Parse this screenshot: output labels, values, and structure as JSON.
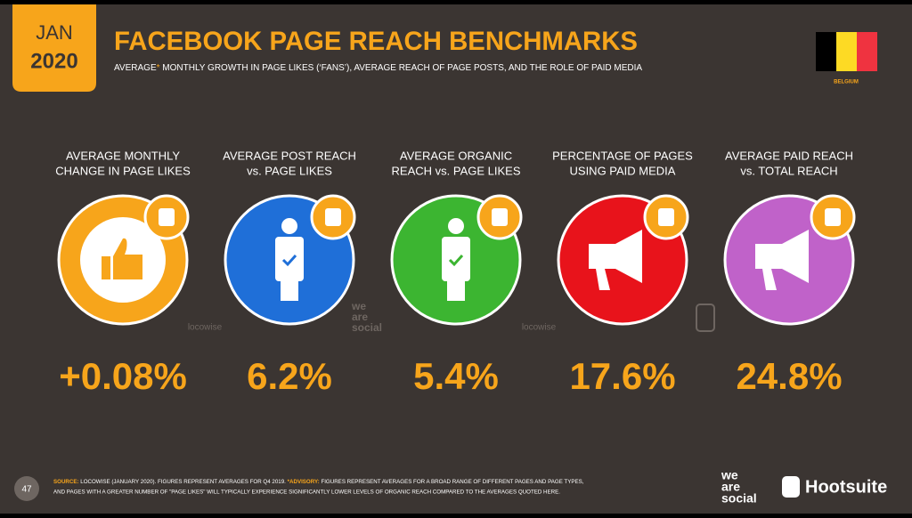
{
  "header": {
    "badge_month": "JAN",
    "badge_year": "2020",
    "title": "FACEBOOK PAGE REACH BENCHMARKS",
    "subtitle_lead": "AVERAGE",
    "subtitle_mark": "*",
    "subtitle_rest": " MONTHLY GROWTH IN PAGE LIKES (‘FANS’), AVERAGE REACH OF PAGE POSTS, AND THE ROLE OF PAID MEDIA",
    "country": "BELGIUM"
  },
  "stats": [
    {
      "label": [
        "AVERAGE MONTHLY",
        "CHANGE IN PAGE LIKES"
      ],
      "value": "+0.08%"
    },
    {
      "label": [
        "AVERAGE POST REACH",
        "vs. PAGE LIKES"
      ],
      "value": "6.2%"
    },
    {
      "label": [
        "AVERAGE ORGANIC",
        "REACH vs. PAGE LIKES"
      ],
      "value": "5.4%"
    },
    {
      "label": [
        "PERCENTAGE OF PAGES",
        "USING PAID MEDIA"
      ],
      "value": "17.6%"
    },
    {
      "label": [
        "AVERAGE PAID REACH",
        "vs. TOTAL REACH"
      ],
      "value": "24.8%"
    }
  ],
  "watermarks": {
    "locowise": "locowise",
    "social": [
      "we",
      "are",
      "social"
    ]
  },
  "footer": {
    "page": "47",
    "source_label": "SOURCE:",
    "source_text": " LOCOWISE (JANUARY 2020). FIGURES REPRESENT AVERAGES FOR Q4 2019. ",
    "advisory_label": "*ADVISORY:",
    "advisory_text": " FIGURES REPRESENT AVERAGES FOR A BROAD RANGE OF DIFFERENT PAGES AND PAGE TYPES,",
    "line2": "AND PAGES WITH A GREATER NUMBER OF \"PAGE LIKES\" WILL TYPICALLY EXPERIENCE SIGNIFICANTLY LOWER LEVELS OF ORGANIC REACH COMPARED TO THE AVERAGES QUOTED HERE.",
    "brand1": [
      "we",
      "are",
      "social"
    ],
    "brand2": "Hootsuite"
  }
}
